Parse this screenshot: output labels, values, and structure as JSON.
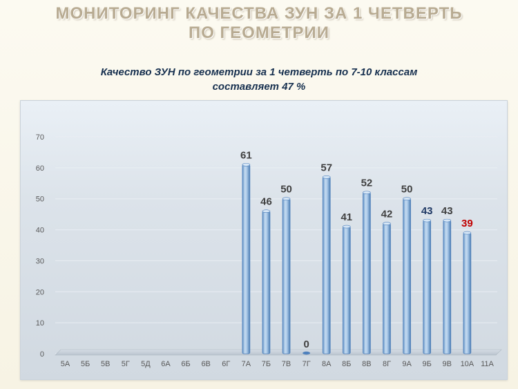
{
  "slide": {
    "title_line1": "МОНИТОРИНГ КАЧЕСТВА ЗУН ЗА 1  ЧЕТВЕРТЬ",
    "title_line2": "ПО  ГЕОМЕТРИИ",
    "subtitle_line1": "Качество ЗУН по геометрии  за 1 четверть  по 7-10 классам",
    "subtitle_line2": "составляет  47  %"
  },
  "chart_data": {
    "type": "bar",
    "title": "",
    "xlabel": "",
    "ylabel": "",
    "ylim": [
      0,
      70
    ],
    "y_ticks": [
      0,
      10,
      20,
      30,
      40,
      50,
      60,
      70
    ],
    "grid": true,
    "legend": "none",
    "categories": [
      "5А",
      "5Б",
      "5В",
      "5Г",
      "5Д",
      "6А",
      "6Б",
      "6В",
      "6Г",
      "7А",
      "7Б",
      "7В",
      "7Г",
      "8А",
      "8Б",
      "8В",
      "8Г",
      "9А",
      "9Б",
      "9В",
      "10А",
      "11А"
    ],
    "values": [
      null,
      null,
      null,
      null,
      null,
      null,
      null,
      null,
      null,
      61,
      46,
      50,
      0,
      57,
      41,
      52,
      42,
      50,
      43,
      43,
      39,
      null
    ],
    "data_labels": [
      "",
      "",
      "",
      "",
      "",
      "",
      "",
      "",
      "",
      "61",
      "46",
      "50",
      "0",
      "57",
      "41",
      "52",
      "42",
      "50",
      "43",
      "43",
      "39",
      ""
    ],
    "label_colors": {
      "default": "#404040",
      "9Б": "#1f3864",
      "10А": "#c00000"
    },
    "bar_color": "#9dc3e6",
    "bar_edge_color": "#4f81bd"
  }
}
